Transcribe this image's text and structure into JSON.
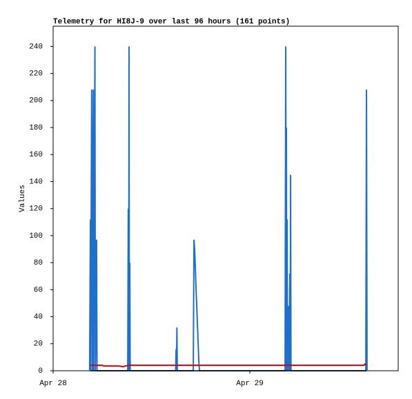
{
  "chart_data": {
    "type": "line",
    "title": "Telemetry for HI8J-9 over last 96 hours (161 points)",
    "y_label": "Values",
    "xlim": [
      0,
      42.1
    ],
    "xticks": [
      {
        "value": 0,
        "label": "Apr 28"
      },
      {
        "value": 24,
        "label": "Apr 29"
      }
    ],
    "ylim": [
      0,
      255
    ],
    "yticks": [
      0,
      20,
      40,
      60,
      80,
      100,
      120,
      140,
      160,
      180,
      200,
      220,
      240
    ],
    "series": [
      {
        "color": "#1f6fcc",
        "x": [
          4.45,
          4.55,
          4.6,
          4.65,
          4.7,
          4.8,
          4.9,
          4.95,
          5.1,
          5.15,
          5.3,
          5.35,
          9.1,
          9.17,
          9.22,
          9.26,
          9.3,
          9.35,
          9.4,
          14.95,
          15.0,
          15.05,
          15.1,
          15.15,
          17.1,
          17.18,
          17.27,
          17.35,
          17.43,
          17.52,
          17.6,
          17.69,
          17.77,
          17.86,
          28.3,
          28.38,
          28.42,
          28.46,
          28.5,
          28.55,
          28.6,
          28.72,
          28.78,
          28.88,
          28.93,
          28.97,
          29.02,
          38.15,
          38.23,
          38.3
        ],
        "values": [
          0,
          112,
          0,
          128,
          208,
          0,
          208,
          0,
          240,
          0,
          97,
          0,
          0,
          120,
          0,
          240,
          0,
          80,
          0,
          0,
          16,
          0,
          32,
          0,
          0,
          97,
          89,
          76,
          62,
          48,
          35,
          21,
          7,
          0,
          0,
          240,
          0,
          180,
          0,
          112,
          0,
          48,
          0,
          72,
          0,
          145,
          0,
          0,
          208,
          0
        ]
      },
      {
        "color": "#e00000",
        "x": [
          4.55,
          6.0,
          6.2,
          8.0,
          8.5,
          9.2,
          20,
          30,
          37.9,
          38.05,
          38.23
        ],
        "values": [
          4,
          4,
          3.5,
          3.5,
          3,
          4,
          4,
          4,
          4,
          5,
          4
        ]
      },
      {
        "color": "#000000",
        "x": [
          4.55,
          38.23
        ],
        "values": [
          0,
          0
        ]
      }
    ]
  }
}
